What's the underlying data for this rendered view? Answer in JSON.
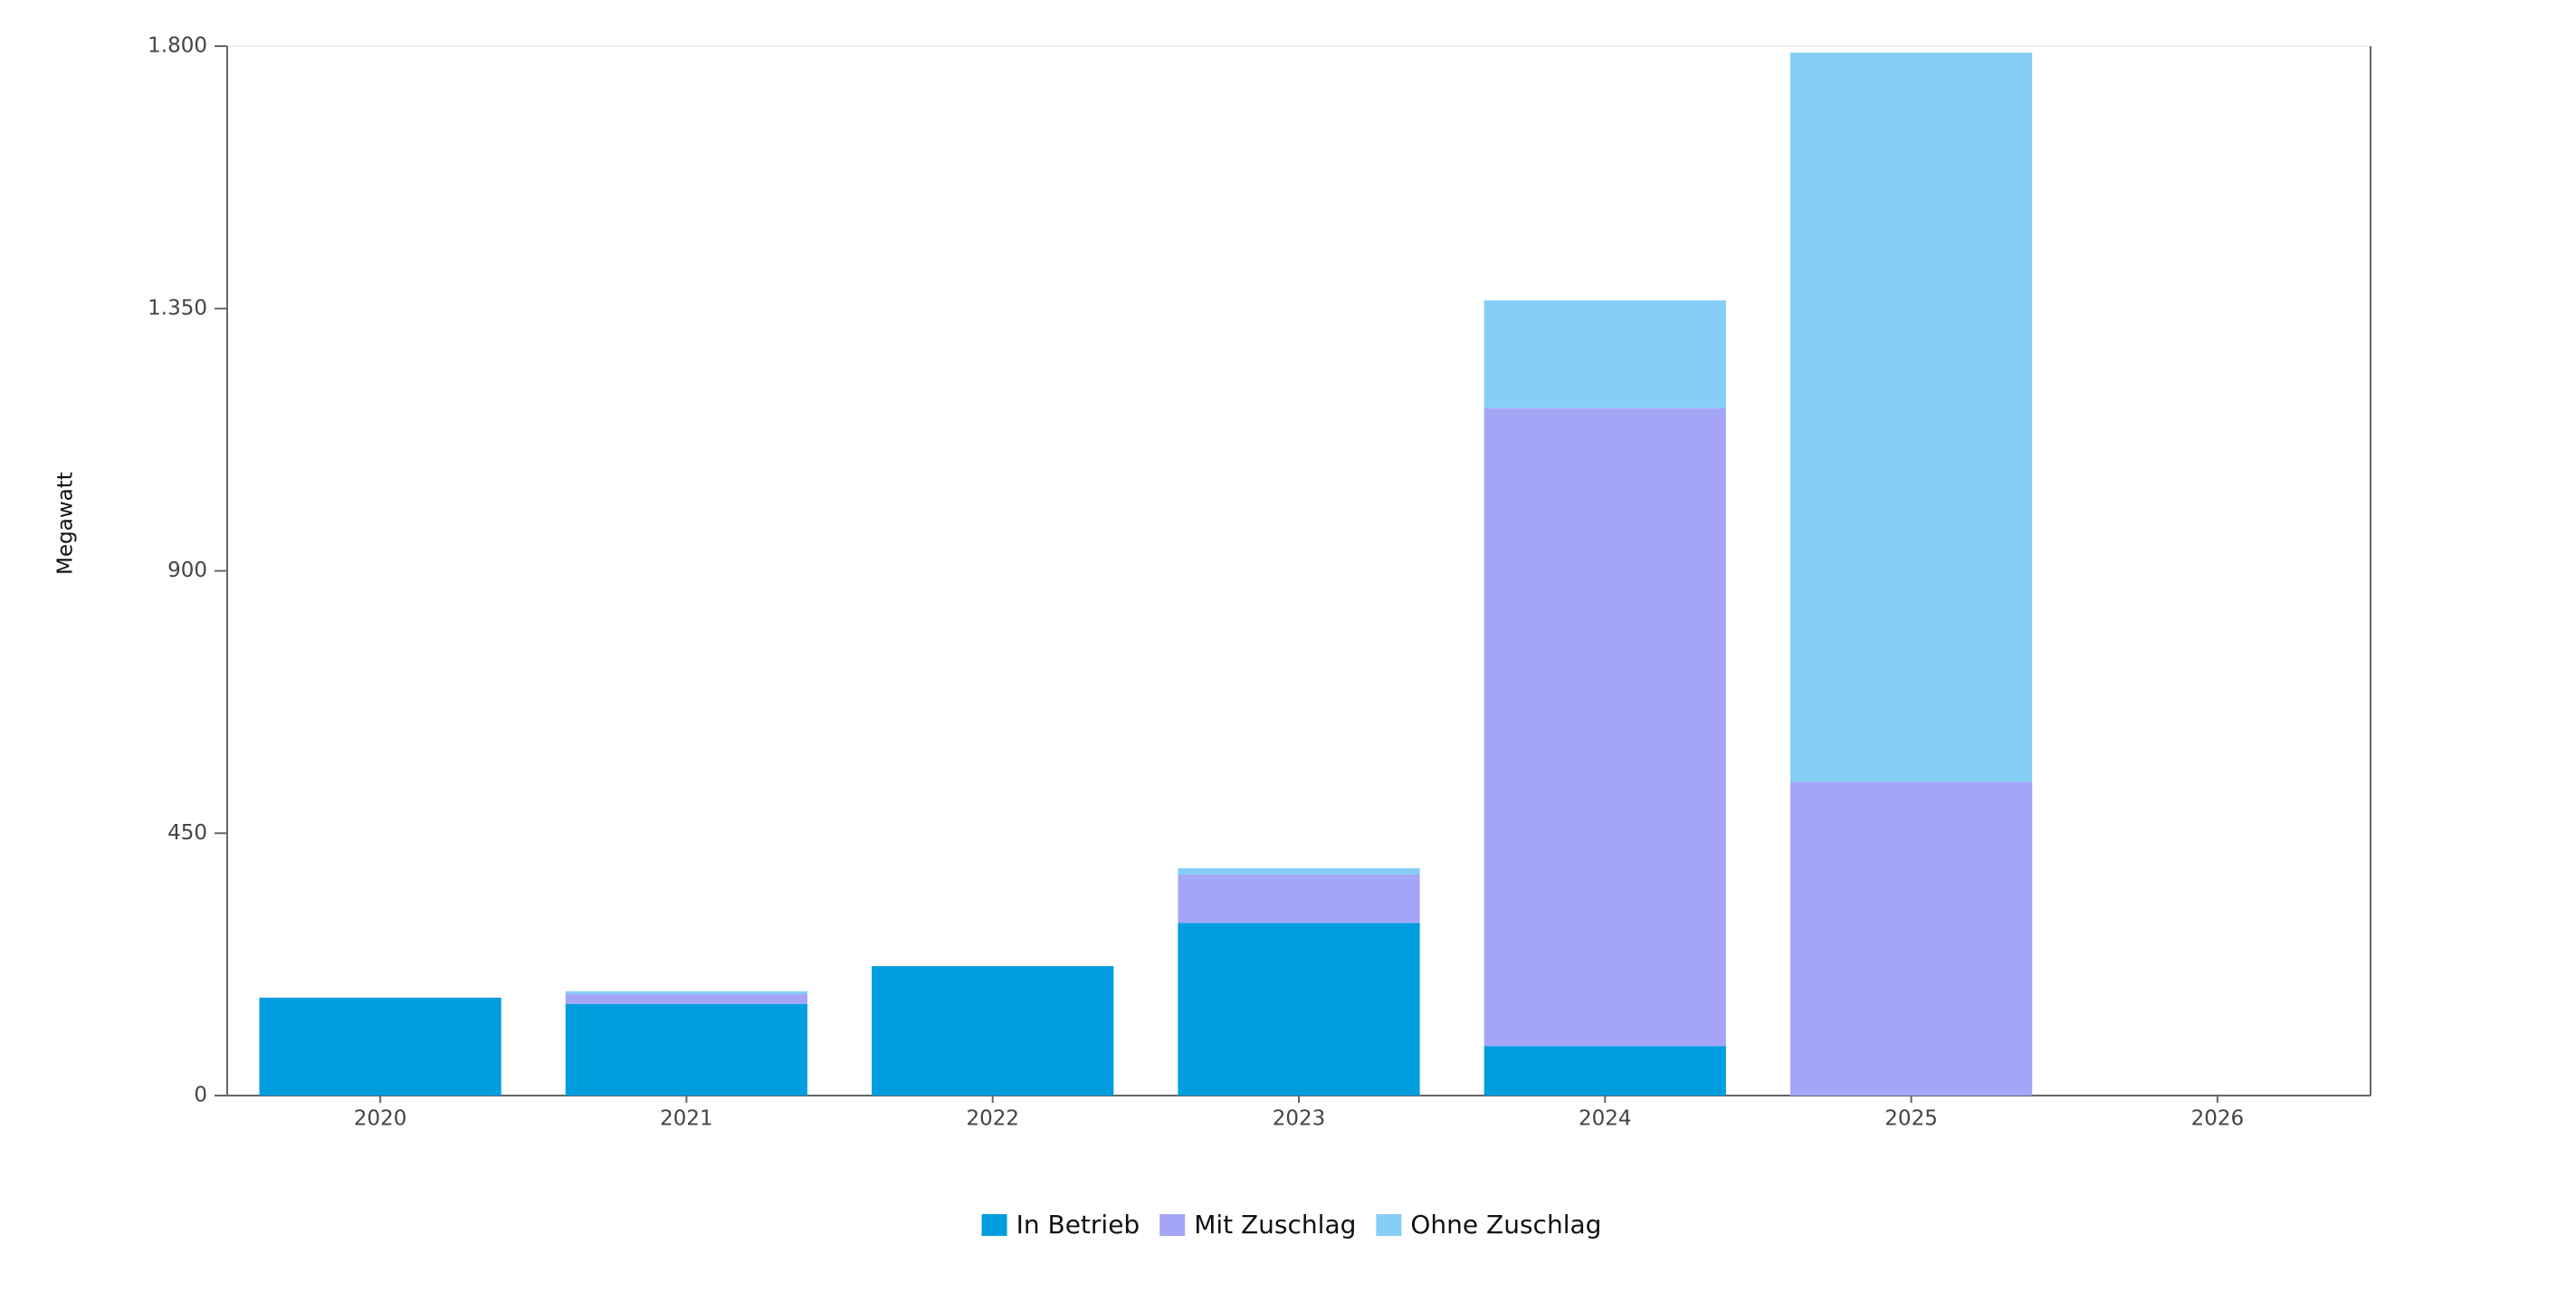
{
  "chart_data": {
    "type": "stacked-bar",
    "y_label": "Megawatt",
    "categories": [
      "2020",
      "2021",
      "2022",
      "2023",
      "2024",
      "2025",
      "2026"
    ],
    "series": [
      {
        "name": "In Betrieb",
        "color": "#009ddf",
        "values": [
          168,
          157,
          222,
          296,
          85,
          0,
          0
        ]
      },
      {
        "name": "Mit Zuschlag",
        "color": "#a5a5f7",
        "values": [
          0,
          17,
          0,
          83,
          1094,
          538,
          0
        ]
      },
      {
        "name": "Ohne Zuschlag",
        "color": "#86cef5",
        "values": [
          0,
          5,
          0,
          11,
          185,
          1251,
          0
        ]
      }
    ],
    "ylim": [
      0,
      1800
    ],
    "yticks": [
      0,
      450,
      900,
      {
        "value": 1350,
        "label": "1.350"
      },
      {
        "value": 1800,
        "label": "1.800"
      }
    ],
    "legend": "bottom"
  }
}
